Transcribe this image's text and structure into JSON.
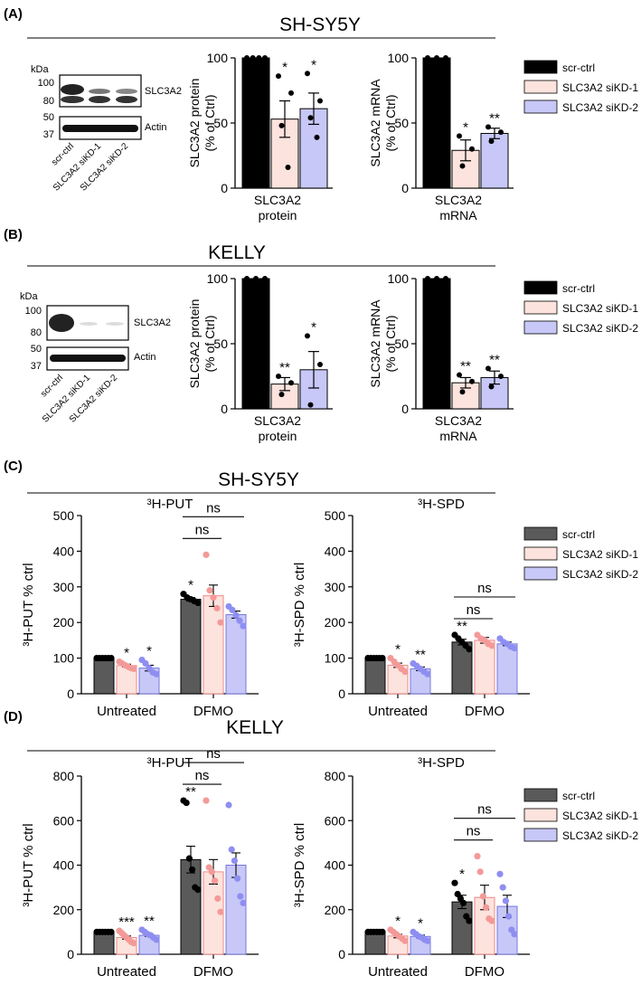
{
  "colors": {
    "scr_ctrl_AB": "#000000",
    "scr_ctrl_CD": "#5a5a5a",
    "siKD1": "#fde3dd",
    "siKD2": "#c7c8f7",
    "siKD1_dot": "#f39a98",
    "siKD2_dot": "#8e8ef2"
  },
  "legend": {
    "items": [
      "scr-ctrl",
      "SLC3A2 siKD-1",
      "SLC3A2 siKD-2"
    ]
  },
  "panels": [
    {
      "label": "(A)",
      "title": "SH-SY5Y",
      "blot": {
        "kda_label": "kDa",
        "markers": [
          "100",
          "80",
          "50",
          "37"
        ],
        "bands": [
          "SLC3A2",
          "Actin"
        ],
        "lanes": [
          "scr-ctrl",
          "SLC3A2 siKD-1",
          "SLC3A2 siKD-2"
        ]
      }
    },
    {
      "label": "(B)",
      "title": "KELLY",
      "blot": {
        "kda_label": "kDa",
        "markers": [
          "100",
          "80",
          "50",
          "37"
        ],
        "bands": [
          "SLC3A2",
          "Actin"
        ],
        "lanes": [
          "scr-ctrl",
          "SLC3A2 siKD-1",
          "SLC3A2 siKD-2"
        ]
      }
    },
    {
      "label": "(C)",
      "title": "SH-SY5Y"
    },
    {
      "label": "(D)",
      "title": "KELLY"
    }
  ],
  "chart_data": [
    {
      "id": "A_protein",
      "panel": "A",
      "type": "bar",
      "ylabel": [
        "SLC3A2 protein",
        "(% of Ctrl)"
      ],
      "xlabel": [
        "SLC3A2",
        "protein"
      ],
      "ylim": [
        0,
        100
      ],
      "yticks": [
        "0",
        "50",
        "100"
      ],
      "series": [
        {
          "name": "scr-ctrl",
          "mean": 100,
          "sem": 0,
          "points": [
            100,
            100,
            100,
            100
          ],
          "sig": ""
        },
        {
          "name": "SLC3A2 siKD-1",
          "mean": 53,
          "sem": 14,
          "points": [
            86,
            73,
            48,
            16
          ],
          "sig": "*"
        },
        {
          "name": "SLC3A2 siKD-2",
          "mean": 61,
          "sem": 12,
          "points": [
            88,
            67,
            54,
            39
          ],
          "sig": "*"
        }
      ]
    },
    {
      "id": "A_mrna",
      "panel": "A",
      "type": "bar",
      "ylabel": [
        "SLC3A2 mRNA",
        "(% of Ctrl)"
      ],
      "xlabel": [
        "SLC3A2",
        "mRNA"
      ],
      "ylim": [
        0,
        100
      ],
      "yticks": [
        "0",
        "50",
        "100"
      ],
      "series": [
        {
          "name": "scr-ctrl",
          "mean": 100,
          "sem": 0,
          "points": [
            100,
            100,
            100
          ],
          "sig": ""
        },
        {
          "name": "SLC3A2 siKD-1",
          "mean": 29,
          "sem": 8,
          "points": [
            40,
            30,
            17
          ],
          "sig": "*"
        },
        {
          "name": "SLC3A2 siKD-2",
          "mean": 42,
          "sem": 4,
          "points": [
            47,
            43,
            36
          ],
          "sig": "**"
        }
      ]
    },
    {
      "id": "B_protein",
      "panel": "B",
      "type": "bar",
      "ylabel": [
        "SLC3A2 protein",
        "(% of Ctrl)"
      ],
      "xlabel": [
        "SLC3A2",
        "protein"
      ],
      "ylim": [
        0,
        100
      ],
      "yticks": [
        "0",
        "50",
        "100"
      ],
      "series": [
        {
          "name": "scr-ctrl",
          "mean": 100,
          "sem": 0,
          "points": [
            100,
            100,
            100
          ],
          "sig": ""
        },
        {
          "name": "SLC3A2 siKD-1",
          "mean": 19,
          "sem": 5,
          "points": [
            25,
            20,
            11
          ],
          "sig": "**"
        },
        {
          "name": "SLC3A2 siKD-2",
          "mean": 30,
          "sem": 14,
          "points": [
            56,
            34,
            3
          ],
          "sig": "*"
        }
      ]
    },
    {
      "id": "B_mrna",
      "panel": "B",
      "type": "bar",
      "ylabel": [
        "SLC3A2 mRNA",
        "(% of Ctrl)"
      ],
      "xlabel": [
        "SLC3A2",
        "mRNA"
      ],
      "ylim": [
        0,
        100
      ],
      "yticks": [
        "0",
        "50",
        "100"
      ],
      "series": [
        {
          "name": "scr-ctrl",
          "mean": 100,
          "sem": 0,
          "points": [
            100,
            100,
            100
          ],
          "sig": ""
        },
        {
          "name": "SLC3A2 siKD-1",
          "mean": 20,
          "sem": 4,
          "points": [
            26,
            21,
            13
          ],
          "sig": "**"
        },
        {
          "name": "SLC3A2 siKD-2",
          "mean": 24,
          "sem": 5,
          "points": [
            31,
            25,
            17
          ],
          "sig": "**"
        }
      ]
    },
    {
      "id": "C_put",
      "panel": "C",
      "type": "bar",
      "title": "³H-PUT",
      "ylabel": "³H-PUT % ctrl",
      "categories": [
        "Untreated",
        "DFMO"
      ],
      "ylim": [
        0,
        500
      ],
      "yticks": [
        "0",
        "100",
        "200",
        "300",
        "400",
        "500"
      ],
      "groups": [
        {
          "name": "Untreated",
          "series": [
            {
              "name": "scr-ctrl",
              "mean": 100,
              "sem": 0,
              "points": [
                100,
                100,
                100,
                100,
                100,
                100
              ],
              "sig": ""
            },
            {
              "name": "SLC3A2 siKD-1",
              "mean": 79,
              "sem": 4,
              "points": [
                90,
                85,
                80,
                76,
                72,
                70
              ],
              "sig": "*"
            },
            {
              "name": "SLC3A2 siKD-2",
              "mean": 72,
              "sem": 8,
              "points": [
                95,
                85,
                72,
                60,
                55
              ],
              "sig": "*"
            }
          ]
        },
        {
          "name": "DFMO",
          "series": [
            {
              "name": "scr-ctrl",
              "mean": 265,
              "sem": 5,
              "points": [
                280,
                270,
                265,
                260,
                255
              ],
              "sig": "*"
            },
            {
              "name": "SLC3A2 siKD-1",
              "mean": 275,
              "sem": 30,
              "points": [
                390,
                290,
                270,
                240,
                200
              ],
              "sig": ""
            },
            {
              "name": "SLC3A2 siKD-2",
              "mean": 222,
              "sem": 10,
              "points": [
                245,
                235,
                220,
                205,
                190
              ],
              "sig": ""
            }
          ]
        }
      ],
      "comparisons": [
        {
          "text": "ns",
          "from": "scr-ctrl",
          "to": "SLC3A2 siKD-1",
          "level": 1
        },
        {
          "text": "ns",
          "from": "scr-ctrl",
          "to": "SLC3A2 siKD-2",
          "level": 2
        }
      ]
    },
    {
      "id": "C_spd",
      "panel": "C",
      "type": "bar",
      "title": "³H-SPD",
      "ylabel": "³H-SPD % ctrl",
      "categories": [
        "Untreated",
        "DFMO"
      ],
      "ylim": [
        0,
        500
      ],
      "yticks": [
        "0",
        "100",
        "200",
        "300",
        "400",
        "500"
      ],
      "groups": [
        {
          "name": "Untreated",
          "series": [
            {
              "name": "scr-ctrl",
              "mean": 100,
              "sem": 0,
              "points": [
                100,
                100,
                100,
                100,
                100,
                100
              ],
              "sig": ""
            },
            {
              "name": "SLC3A2 siKD-1",
              "mean": 80,
              "sem": 6,
              "points": [
                100,
                90,
                80,
                70,
                62
              ],
              "sig": "*"
            },
            {
              "name": "SLC3A2 siKD-2",
              "mean": 70,
              "sem": 5,
              "points": [
                85,
                78,
                70,
                62,
                55
              ],
              "sig": "**"
            }
          ]
        },
        {
          "name": "DFMO",
          "series": [
            {
              "name": "scr-ctrl",
              "mean": 145,
              "sem": 8,
              "points": [
                165,
                155,
                145,
                135,
                125
              ],
              "sig": "**"
            },
            {
              "name": "SLC3A2 siKD-1",
              "mean": 150,
              "sem": 8,
              "points": [
                165,
                155,
                150,
                140,
                135
              ],
              "sig": ""
            },
            {
              "name": "SLC3A2 siKD-2",
              "mean": 140,
              "sem": 5,
              "points": [
                155,
                145,
                140,
                132,
                128
              ],
              "sig": ""
            }
          ]
        }
      ],
      "comparisons": [
        {
          "text": "ns",
          "from": "scr-ctrl",
          "to": "SLC3A2 siKD-1",
          "level": 1
        },
        {
          "text": "ns",
          "from": "scr-ctrl",
          "to": "SLC3A2 siKD-2",
          "level": 2
        }
      ]
    },
    {
      "id": "D_put",
      "panel": "D",
      "type": "bar",
      "title": "³H-PUT",
      "ylabel": "³H-PUT % ctrl",
      "categories": [
        "Untreated",
        "DFMO"
      ],
      "ylim": [
        0,
        800
      ],
      "yticks": [
        "0",
        "200",
        "400",
        "600",
        "800"
      ],
      "groups": [
        {
          "name": "Untreated",
          "series": [
            {
              "name": "scr-ctrl",
              "mean": 100,
              "sem": 0,
              "points": [
                100,
                100,
                100,
                100,
                100,
                100
              ],
              "sig": ""
            },
            {
              "name": "SLC3A2 siKD-1",
              "mean": 75,
              "sem": 7,
              "points": [
                105,
                95,
                85,
                75,
                65,
                55,
                50
              ],
              "sig": "***"
            },
            {
              "name": "SLC3A2 siKD-2",
              "mean": 85,
              "sem": 5,
              "points": [
                110,
                100,
                90,
                85,
                75,
                65
              ],
              "sig": "**"
            }
          ]
        },
        {
          "name": "DFMO",
          "series": [
            {
              "name": "scr-ctrl",
              "mean": 425,
              "sem": 60,
              "points": [
                690,
                680,
                430,
                380,
                300,
                290
              ],
              "sig": "**"
            },
            {
              "name": "SLC3A2 siKD-1",
              "mean": 370,
              "sem": 55,
              "points": [
                690,
                390,
                370,
                330,
                250,
                190
              ],
              "sig": ""
            },
            {
              "name": "SLC3A2 siKD-2",
              "mean": 400,
              "sem": 55,
              "points": [
                670,
                470,
                420,
                340,
                260,
                230
              ],
              "sig": ""
            }
          ]
        }
      ],
      "comparisons": [
        {
          "text": "ns",
          "from": "scr-ctrl",
          "to": "SLC3A2 siKD-1",
          "level": 1
        },
        {
          "text": "ns",
          "from": "scr-ctrl",
          "to": "SLC3A2 siKD-2",
          "level": 2
        }
      ]
    },
    {
      "id": "D_spd",
      "panel": "D",
      "type": "bar",
      "title": "³H-SPD",
      "ylabel": "³H-SPD % ctrl",
      "categories": [
        "Untreated",
        "DFMO"
      ],
      "ylim": [
        0,
        800
      ],
      "yticks": [
        "0",
        "200",
        "400",
        "600",
        "800"
      ],
      "groups": [
        {
          "name": "Untreated",
          "series": [
            {
              "name": "scr-ctrl",
              "mean": 100,
              "sem": 0,
              "points": [
                100,
                100,
                100,
                100,
                100,
                100
              ],
              "sig": ""
            },
            {
              "name": "SLC3A2 siKD-1",
              "mean": 82,
              "sem": 8,
              "points": [
                110,
                100,
                90,
                80,
                70,
                60
              ],
              "sig": "*"
            },
            {
              "name": "SLC3A2 siKD-2",
              "mean": 80,
              "sem": 6,
              "points": [
                100,
                90,
                80,
                75,
                65,
                60
              ],
              "sig": "*"
            }
          ]
        },
        {
          "name": "DFMO",
          "series": [
            {
              "name": "scr-ctrl",
              "mean": 235,
              "sem": 30,
              "points": [
                320,
                270,
                250,
                230,
                170,
                150
              ],
              "sig": "*"
            },
            {
              "name": "SLC3A2 siKD-1",
              "mean": 255,
              "sem": 55,
              "points": [
                440,
                370,
                260,
                210,
                160,
                150
              ],
              "sig": ""
            },
            {
              "name": "SLC3A2 siKD-2",
              "mean": 215,
              "sem": 50,
              "points": [
                360,
                300,
                240,
                170,
                110,
                90
              ],
              "sig": ""
            }
          ]
        }
      ],
      "comparisons": [
        {
          "text": "ns",
          "from": "scr-ctrl",
          "to": "SLC3A2 siKD-1",
          "level": 1
        },
        {
          "text": "ns",
          "from": "scr-ctrl",
          "to": "SLC3A2 siKD-2",
          "level": 2
        }
      ]
    }
  ]
}
